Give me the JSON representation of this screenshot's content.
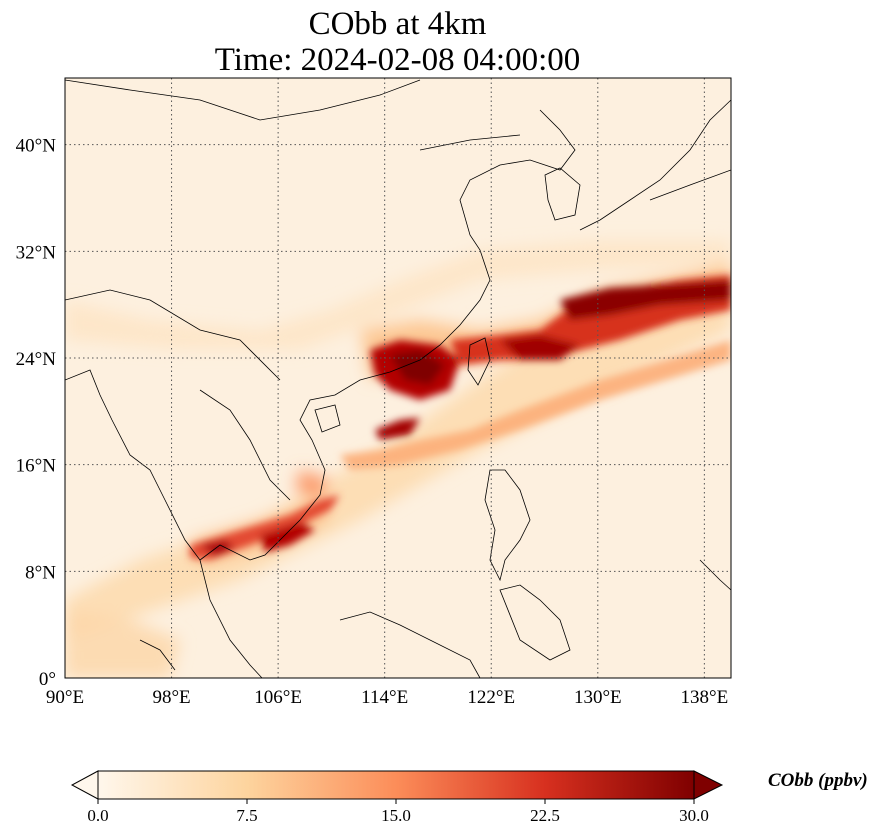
{
  "title_line1": "CObb at 4km",
  "title_line2": "Time: 2024-02-08 04:00:00",
  "lon_ticks": [
    "90°E",
    "98°E",
    "106°E",
    "114°E",
    "122°E",
    "130°E",
    "138°E"
  ],
  "lat_ticks": [
    "0°",
    "8°N",
    "16°N",
    "24°N",
    "32°N",
    "40°N"
  ],
  "lon_values": [
    90,
    98,
    106,
    114,
    122,
    130,
    138
  ],
  "lat_values": [
    0,
    8,
    16,
    24,
    32,
    40
  ],
  "map_extent": {
    "lon": [
      90,
      140
    ],
    "lat": [
      0,
      45
    ]
  },
  "colorbar": {
    "label": "CObb (ppbv)",
    "ticks": [
      "0.0",
      "7.5",
      "15.0",
      "22.5",
      "30.0"
    ],
    "range": [
      0,
      30
    ],
    "colormap": "OrRd",
    "extend": "both",
    "colors": [
      "#fff7ec",
      "#fdd49e",
      "#fc8d59",
      "#d7301f",
      "#7f0000"
    ]
  },
  "gridlines": "dotted"
}
